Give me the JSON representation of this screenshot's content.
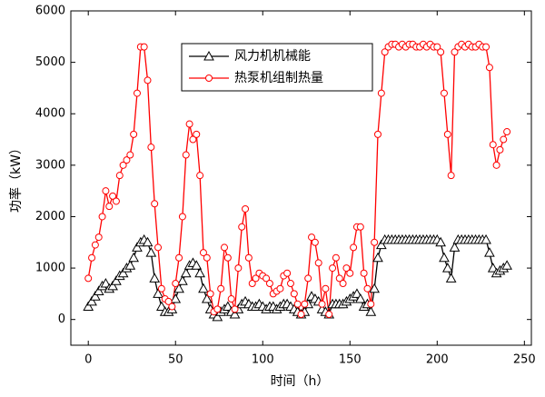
{
  "chart_data": {
    "type": "line",
    "xlabel": "时间（h）",
    "ylabel": "功率（kW）",
    "x": [
      0,
      2,
      4,
      6,
      8,
      10,
      12,
      14,
      16,
      18,
      20,
      22,
      24,
      26,
      28,
      30,
      32,
      34,
      36,
      38,
      40,
      42,
      44,
      46,
      48,
      50,
      52,
      54,
      56,
      58,
      60,
      62,
      64,
      66,
      68,
      70,
      72,
      74,
      76,
      78,
      80,
      82,
      84,
      86,
      88,
      90,
      92,
      94,
      96,
      98,
      100,
      102,
      104,
      106,
      108,
      110,
      112,
      114,
      116,
      118,
      120,
      122,
      124,
      126,
      128,
      130,
      132,
      134,
      136,
      138,
      140,
      142,
      144,
      146,
      148,
      150,
      152,
      154,
      156,
      158,
      160,
      162,
      164,
      166,
      168,
      170,
      172,
      174,
      176,
      178,
      180,
      182,
      184,
      186,
      188,
      190,
      192,
      194,
      196,
      198,
      200,
      202,
      204,
      206,
      208,
      210,
      212,
      214,
      216,
      218,
      220,
      222,
      224,
      226,
      228,
      230,
      232,
      234,
      236,
      238,
      240
    ],
    "series": [
      {
        "name": "风力机机械能",
        "color": "#000000",
        "marker": "triangle",
        "values": [
          250,
          350,
          450,
          550,
          650,
          700,
          600,
          650,
          750,
          850,
          900,
          1000,
          1050,
          1200,
          1400,
          1500,
          1550,
          1500,
          1300,
          800,
          500,
          250,
          150,
          150,
          200,
          400,
          600,
          750,
          900,
          1050,
          1100,
          1050,
          900,
          600,
          400,
          200,
          100,
          50,
          150,
          200,
          250,
          150,
          100,
          200,
          300,
          350,
          300,
          250,
          250,
          300,
          250,
          200,
          250,
          250,
          200,
          250,
          300,
          300,
          250,
          200,
          150,
          100,
          150,
          300,
          450,
          400,
          350,
          200,
          150,
          100,
          300,
          300,
          300,
          300,
          350,
          400,
          450,
          500,
          400,
          250,
          300,
          150,
          600,
          1200,
          1450,
          1550,
          1550,
          1550,
          1550,
          1550,
          1550,
          1550,
          1550,
          1550,
          1550,
          1550,
          1550,
          1550,
          1550,
          1550,
          1550,
          1500,
          1200,
          1000,
          800,
          1400,
          1550,
          1550,
          1550,
          1550,
          1550,
          1550,
          1550,
          1550,
          1550,
          1300,
          1000,
          900,
          950,
          1000,
          1050
        ]
      },
      {
        "name": "热泵机组制热量",
        "color": "#ff0000",
        "marker": "circle",
        "values": [
          800,
          1200,
          1450,
          1600,
          2000,
          2500,
          2200,
          2400,
          2300,
          2800,
          3000,
          3100,
          3200,
          3600,
          4400,
          5300,
          5300,
          4650,
          3350,
          2250,
          1400,
          600,
          400,
          350,
          250,
          700,
          1200,
          2000,
          3200,
          3800,
          3500,
          3600,
          2800,
          1300,
          1200,
          500,
          150,
          200,
          600,
          1400,
          1200,
          400,
          200,
          1000,
          1800,
          2150,
          1200,
          700,
          800,
          900,
          850,
          800,
          700,
          500,
          550,
          600,
          850,
          900,
          700,
          500,
          300,
          100,
          300,
          800,
          1600,
          1500,
          1100,
          300,
          600,
          100,
          1000,
          1200,
          800,
          700,
          1000,
          900,
          1400,
          1800,
          1800,
          900,
          600,
          300,
          1500,
          3600,
          4400,
          5200,
          5300,
          5350,
          5350,
          5300,
          5350,
          5300,
          5350,
          5350,
          5300,
          5300,
          5350,
          5300,
          5350,
          5300,
          5300,
          5200,
          4400,
          3600,
          2800,
          5200,
          5300,
          5350,
          5300,
          5350,
          5300,
          5300,
          5350,
          5300,
          5300,
          4900,
          3400,
          3000,
          3300,
          3500,
          3650
        ]
      }
    ],
    "xlim": [
      -10,
      254
    ],
    "xticks": [
      0,
      50,
      100,
      150,
      200,
      250
    ],
    "ylim": [
      -500,
      6000
    ],
    "yticks": [
      0,
      1000,
      2000,
      3000,
      4000,
      5000,
      6000
    ],
    "legend": "upper center"
  }
}
